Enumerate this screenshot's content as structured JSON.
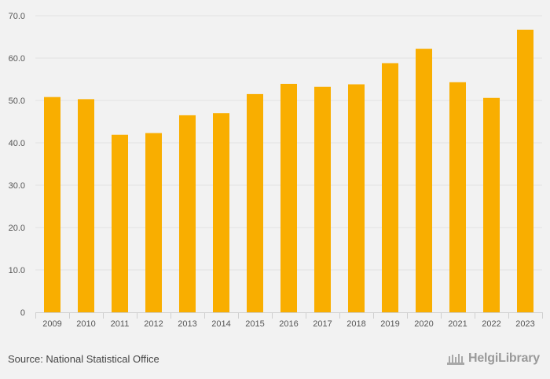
{
  "chart_data": {
    "type": "bar",
    "categories": [
      "2009",
      "2010",
      "2011",
      "2012",
      "2013",
      "2014",
      "2015",
      "2016",
      "2017",
      "2018",
      "2019",
      "2020",
      "2021",
      "2022",
      "2023"
    ],
    "values": [
      50.8,
      50.3,
      41.9,
      42.3,
      46.5,
      47.0,
      51.5,
      53.9,
      53.2,
      53.8,
      58.8,
      62.2,
      54.3,
      50.6,
      66.7
    ],
    "ylim": [
      0,
      70
    ],
    "yticks": [
      0,
      10,
      20,
      30,
      40,
      50,
      60,
      70
    ],
    "ytick_labels": [
      "0",
      "10.0",
      "20.0",
      "30.0",
      "40.0",
      "50.0",
      "60.0",
      "70.0"
    ],
    "title": "",
    "xlabel": "",
    "ylabel": "",
    "grid": true,
    "bar_color": "#f9ae00",
    "grid_color": "#e2e2e2",
    "axis_color": "#cfcfcf",
    "background_color": "#f2f2f2"
  },
  "footer": {
    "source_text": "Source: National Statistical Office",
    "brand_text": "HelgiLibrary",
    "brand_icon": "library-building-icon"
  }
}
